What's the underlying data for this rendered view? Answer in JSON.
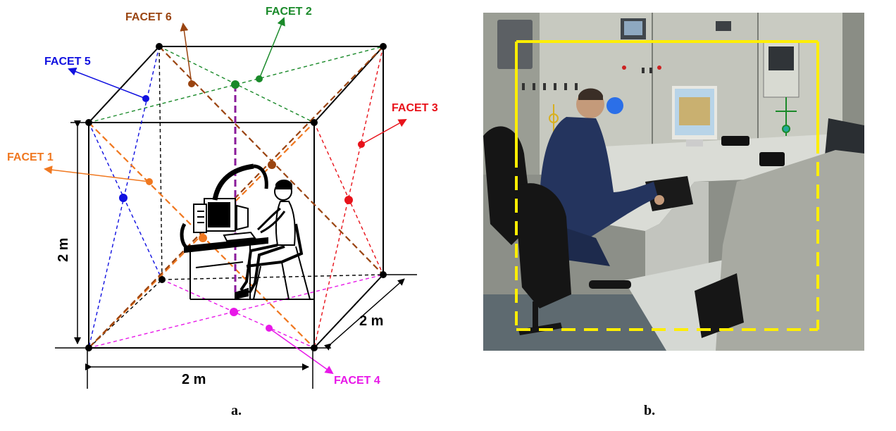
{
  "facets": {
    "f1": {
      "label": "FACET 1",
      "color": "#f07820"
    },
    "f2": {
      "label": "FACET 2",
      "color": "#1a8a2a"
    },
    "f3": {
      "label": "FACET 3",
      "color": "#e8121a"
    },
    "f4": {
      "label": "FACET 4",
      "color": "#e818e8"
    },
    "f5": {
      "label": "FACET 5",
      "color": "#1010e0"
    },
    "f6": {
      "label": "FACET 6",
      "color": "#9a4410"
    }
  },
  "dimensions": {
    "height": "2 m",
    "width": "2 m",
    "depth": "2 m"
  },
  "vertical_axis_color": "#8a1a9a",
  "roi_color": "#ffee00",
  "captions": {
    "a": "a.",
    "b": "b."
  }
}
